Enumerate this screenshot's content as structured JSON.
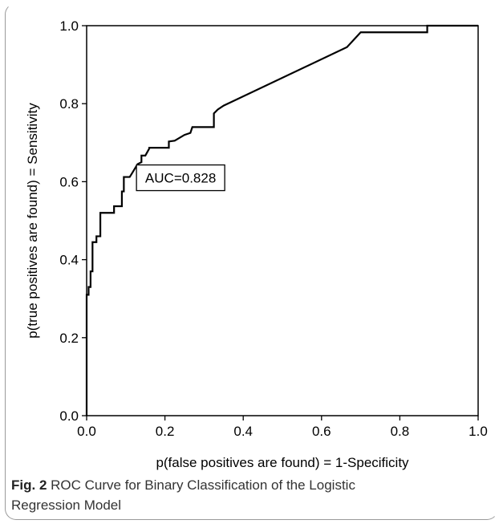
{
  "chart_data": {
    "type": "line",
    "title": "",
    "xlabel": "p(false positives are found) = 1-Specificity",
    "ylabel": "p(true positives are found) = Sensitivity",
    "xlim": [
      0.0,
      1.0
    ],
    "ylim": [
      0.0,
      1.0
    ],
    "x_ticks": [
      "0.0",
      "0.2",
      "0.4",
      "0.6",
      "0.8",
      "1.0"
    ],
    "y_ticks": [
      "0.0",
      "0.2",
      "0.4",
      "0.6",
      "0.8",
      "1.0"
    ],
    "grid": false,
    "annotations": [
      {
        "text": "AUC=0.828",
        "x": 0.24,
        "y": 0.61
      }
    ],
    "series": [
      {
        "color": "#000000",
        "x": [
          0.0,
          0.0,
          0.005,
          0.005,
          0.01,
          0.01,
          0.015,
          0.015,
          0.025,
          0.025,
          0.035,
          0.035,
          0.045,
          0.065,
          0.07,
          0.07,
          0.09,
          0.09,
          0.095,
          0.095,
          0.11,
          0.115,
          0.13,
          0.14,
          0.14,
          0.15,
          0.16,
          0.16,
          0.21,
          0.21,
          0.225,
          0.25,
          0.265,
          0.27,
          0.275,
          0.325,
          0.325,
          0.335,
          0.35,
          0.665,
          0.7,
          0.87,
          0.87,
          1.0
        ],
        "y": [
          0.0,
          0.31,
          0.31,
          0.33,
          0.33,
          0.37,
          0.37,
          0.445,
          0.445,
          0.46,
          0.46,
          0.52,
          0.52,
          0.52,
          0.52,
          0.537,
          0.537,
          0.575,
          0.575,
          0.612,
          0.612,
          0.62,
          0.645,
          0.65,
          0.667,
          0.667,
          0.685,
          0.687,
          0.687,
          0.703,
          0.705,
          0.72,
          0.725,
          0.74,
          0.74,
          0.74,
          0.775,
          0.785,
          0.795,
          0.945,
          0.983,
          0.983,
          1.0,
          1.0
        ]
      }
    ]
  },
  "caption": {
    "label": "Fig. 2",
    "line1": "ROC Curve for Binary Classification of the Logistic",
    "line2": "Regression Model"
  }
}
